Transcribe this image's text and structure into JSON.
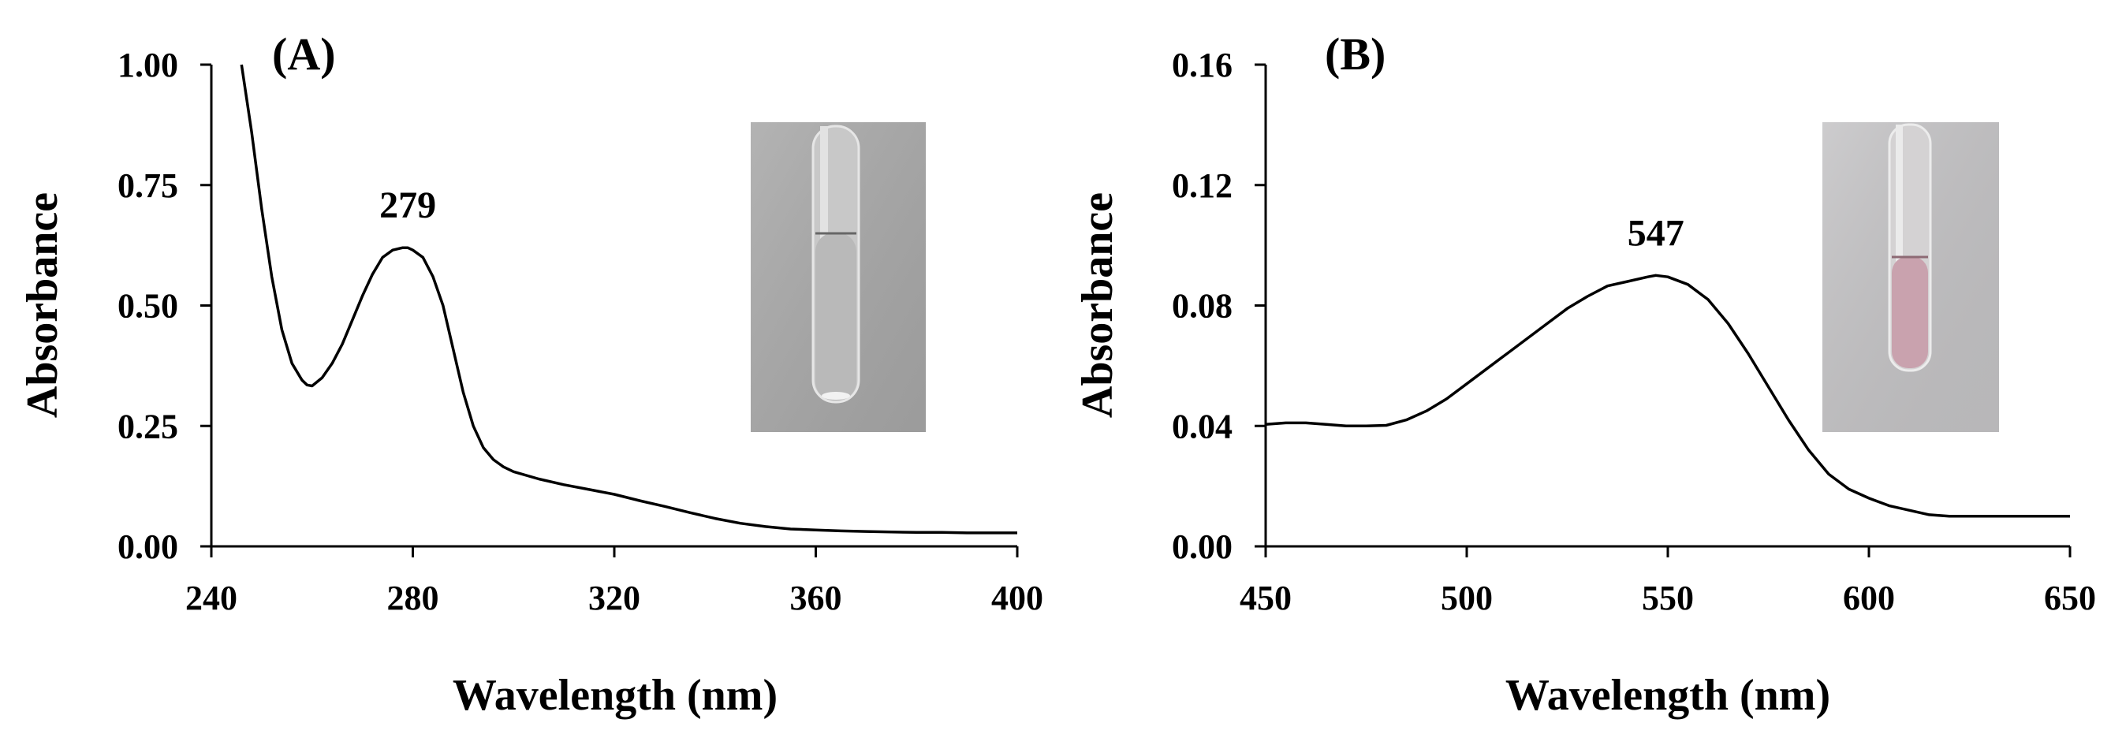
{
  "chart_data": [
    {
      "type": "line",
      "panel_label": "(A)",
      "xlabel": "Wavelength (nm)",
      "ylabel": "Absorbance",
      "xlim": [
        240,
        400
      ],
      "ylim": [
        0,
        1
      ],
      "x_ticks": [
        "240",
        "280",
        "320",
        "360",
        "400"
      ],
      "y_ticks": [
        "0.00",
        "0.25",
        "0.50",
        "0.75",
        "1.00"
      ],
      "x_tick_values": [
        240,
        280,
        320,
        360,
        400
      ],
      "y_tick_values": [
        0,
        0.25,
        0.5,
        0.75,
        1.0
      ],
      "grid": false,
      "annotation": {
        "text": "279",
        "x": 279,
        "y": 0.62
      },
      "inset": {
        "name": "cuvette-photo-colorless",
        "glass": "#c8c8c8",
        "liquid": "#b9b9b9",
        "background": "#a9a9a9"
      },
      "series": [
        {
          "x": [
            246,
            248,
            250,
            252,
            254,
            256,
            258,
            259,
            260,
            262,
            264,
            266,
            268,
            270,
            272,
            274,
            276,
            278,
            279,
            280,
            282,
            284,
            286,
            288,
            290,
            292,
            294,
            296,
            298,
            300,
            305,
            310,
            315,
            320,
            325,
            330,
            335,
            340,
            345,
            350,
            355,
            360,
            365,
            370,
            375,
            380,
            385,
            390,
            395,
            400
          ],
          "y": [
            1.0,
            0.86,
            0.7,
            0.56,
            0.45,
            0.38,
            0.345,
            0.335,
            0.333,
            0.35,
            0.38,
            0.42,
            0.47,
            0.52,
            0.565,
            0.6,
            0.615,
            0.62,
            0.62,
            0.615,
            0.6,
            0.56,
            0.5,
            0.41,
            0.32,
            0.25,
            0.205,
            0.18,
            0.165,
            0.155,
            0.14,
            0.128,
            0.118,
            0.108,
            0.095,
            0.083,
            0.07,
            0.058,
            0.048,
            0.041,
            0.036,
            0.034,
            0.032,
            0.031,
            0.03,
            0.029,
            0.029,
            0.028,
            0.028,
            0.028
          ]
        }
      ]
    },
    {
      "type": "line",
      "panel_label": "(B)",
      "xlabel": "Wavelength (nm)",
      "ylabel": "Absorbance",
      "xlim": [
        450,
        650
      ],
      "ylim": [
        0,
        0.16
      ],
      "x_ticks": [
        "450",
        "500",
        "550",
        "600",
        "650"
      ],
      "y_ticks": [
        "0.00",
        "0.04",
        "0.08",
        "0.12",
        "0.16"
      ],
      "x_tick_values": [
        450,
        500,
        550,
        600,
        650
      ],
      "y_tick_values": [
        0,
        0.04,
        0.08,
        0.12,
        0.16
      ],
      "grid": false,
      "annotation": {
        "text": "547",
        "x": 547,
        "y": 0.09
      },
      "inset": {
        "name": "cuvette-photo-pink",
        "glass": "#d4d2d3",
        "liquid": "#c9a2ae",
        "background": "#c4c3c5"
      },
      "series": [
        {
          "x": [
            450,
            455,
            460,
            465,
            470,
            475,
            480,
            485,
            490,
            495,
            500,
            505,
            510,
            515,
            520,
            525,
            530,
            535,
            540,
            545,
            547,
            550,
            555,
            560,
            565,
            570,
            575,
            580,
            585,
            590,
            595,
            600,
            605,
            610,
            615,
            620,
            625,
            630,
            635,
            640,
            645,
            650
          ],
          "y": [
            0.0405,
            0.041,
            0.041,
            0.0405,
            0.04,
            0.04,
            0.0402,
            0.042,
            0.045,
            0.049,
            0.054,
            0.059,
            0.064,
            0.069,
            0.074,
            0.079,
            0.083,
            0.0865,
            0.088,
            0.0895,
            0.09,
            0.0895,
            0.087,
            0.082,
            0.074,
            0.064,
            0.053,
            0.042,
            0.032,
            0.024,
            0.019,
            0.016,
            0.0135,
            0.012,
            0.0105,
            0.01,
            0.01,
            0.01,
            0.01,
            0.01,
            0.01,
            0.01
          ]
        }
      ]
    }
  ]
}
